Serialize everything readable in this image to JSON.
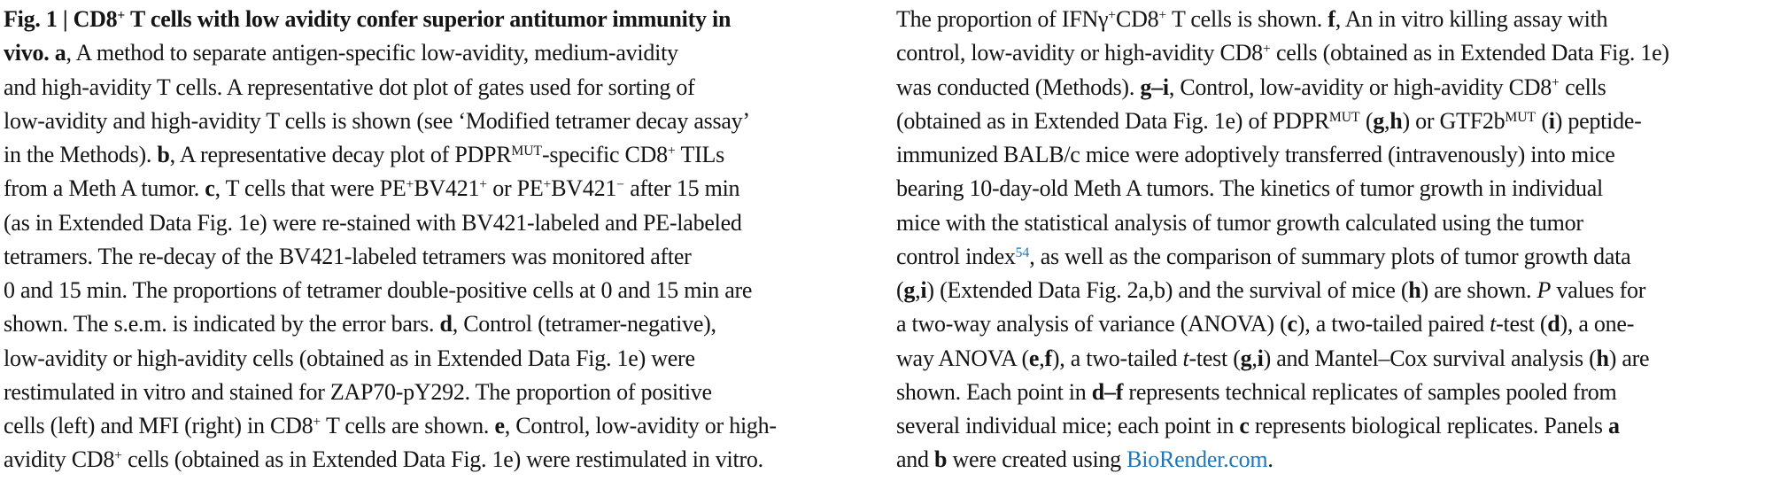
{
  "page": {
    "background": "#ffffff",
    "text_color": "#141414",
    "link_color": "#1b76bb"
  },
  "figure_caption": {
    "figure_label": "Fig. 1",
    "columns": [
      {
        "lines": [
          [
            {
              "t": "Fig. 1 | CD8",
              "b": 1
            },
            {
              "t": "+",
              "b": 1,
              "sup": 1
            },
            {
              "t": " T cells with low avidity confer superior antitumor immunity in",
              "b": 1
            }
          ],
          [
            {
              "t": "vivo. a",
              "b": 1
            },
            {
              "t": ", A method to separate antigen-specific low-avidity, medium-avidity"
            }
          ],
          [
            {
              "t": "and high-avidity T cells. A representative dot plot of gates used for sorting of"
            }
          ],
          [
            {
              "t": "low-avidity and high-avidity T cells is shown (see ‘Modified tetramer decay assay’"
            }
          ],
          [
            {
              "t": "in the Methods). "
            },
            {
              "t": "b",
              "b": 1
            },
            {
              "t": ", A representative decay plot of PDPR"
            },
            {
              "t": "MUT",
              "sup": 1
            },
            {
              "t": "-specific CD8"
            },
            {
              "t": "+",
              "sup": 1
            },
            {
              "t": " TILs"
            }
          ],
          [
            {
              "t": "from a Meth A tumor. "
            },
            {
              "t": "c",
              "b": 1
            },
            {
              "t": ", T cells that were PE"
            },
            {
              "t": "+",
              "sup": 1
            },
            {
              "t": "BV421"
            },
            {
              "t": "+",
              "sup": 1
            },
            {
              "t": " or PE"
            },
            {
              "t": "+",
              "sup": 1
            },
            {
              "t": "BV421"
            },
            {
              "t": "−",
              "sup": 1
            },
            {
              "t": " after 15 min"
            }
          ],
          [
            {
              "t": "(as in Extended Data Fig. 1e) were re-stained with BV421-labeled and PE-labeled"
            }
          ],
          [
            {
              "t": "tetramers. The re-decay of the BV421-labeled tetramers was monitored after"
            }
          ],
          [
            {
              "t": "0 and 15 min. The proportions of tetramer double-positive cells at 0 and 15 min are"
            }
          ],
          [
            {
              "t": "shown. The s.e.m. is indicated by the error bars. "
            },
            {
              "t": "d",
              "b": 1
            },
            {
              "t": ", Control (tetramer-negative),"
            }
          ],
          [
            {
              "t": "low-avidity or high-avidity cells (obtained as in Extended Data Fig. 1e) were"
            }
          ],
          [
            {
              "t": "restimulated in vitro and stained for ZAP70-pY292. The proportion of positive"
            }
          ],
          [
            {
              "t": "cells (left) and MFI (right) in CD8"
            },
            {
              "t": "+",
              "sup": 1
            },
            {
              "t": " T cells are shown. "
            },
            {
              "t": "e",
              "b": 1
            },
            {
              "t": ", Control, low-avidity or high-"
            }
          ],
          [
            {
              "t": "avidity CD8"
            },
            {
              "t": "+",
              "sup": 1
            },
            {
              "t": " cells (obtained as in Extended Data Fig. 1e) were restimulated in vitro."
            }
          ]
        ]
      },
      {
        "lines": [
          [
            {
              "t": "The proportion of IFNγ"
            },
            {
              "t": "+",
              "sup": 1
            },
            {
              "t": "CD8"
            },
            {
              "t": "+",
              "sup": 1
            },
            {
              "t": " T cells is shown. "
            },
            {
              "t": "f",
              "b": 1
            },
            {
              "t": ", An in vitro killing assay with"
            }
          ],
          [
            {
              "t": "control, low-avidity or high-avidity CD8"
            },
            {
              "t": "+",
              "sup": 1
            },
            {
              "t": " cells (obtained as in Extended Data Fig. 1e)"
            }
          ],
          [
            {
              "t": "was conducted (Methods). "
            },
            {
              "t": "g–i",
              "b": 1
            },
            {
              "t": ", Control, low-avidity or high-avidity CD8"
            },
            {
              "t": "+",
              "sup": 1
            },
            {
              "t": " cells"
            }
          ],
          [
            {
              "t": "(obtained as in Extended Data Fig. 1e) of PDPR"
            },
            {
              "t": "MUT",
              "sup": 1
            },
            {
              "t": " ("
            },
            {
              "t": "g",
              "b": 1
            },
            {
              "t": ","
            },
            {
              "t": "h",
              "b": 1
            },
            {
              "t": ") or GTF2b"
            },
            {
              "t": "MUT",
              "sup": 1
            },
            {
              "t": " ("
            },
            {
              "t": "i",
              "b": 1
            },
            {
              "t": ") peptide-"
            }
          ],
          [
            {
              "t": "immunized BALB/c mice were adoptively transferred (intravenously) into mice"
            }
          ],
          [
            {
              "t": "bearing 10-day-old Meth A tumors. The kinetics of tumor growth in individual"
            }
          ],
          [
            {
              "t": "mice with the statistical analysis of tumor growth calculated using the tumor"
            }
          ],
          [
            {
              "t": "control index"
            },
            {
              "t": "54",
              "sup": 1,
              "c": "link"
            },
            {
              "t": ", as well as the comparison of summary plots of tumor growth data"
            }
          ],
          [
            {
              "t": "("
            },
            {
              "t": "g",
              "b": 1
            },
            {
              "t": ","
            },
            {
              "t": "i",
              "b": 1
            },
            {
              "t": ") (Extended Data Fig. 2a,b) and the survival of mice ("
            },
            {
              "t": "h",
              "b": 1
            },
            {
              "t": ") are shown. "
            },
            {
              "t": "P",
              "i": 1
            },
            {
              "t": " values for"
            }
          ],
          [
            {
              "t": "a two-way analysis of variance (ANOVA) ("
            },
            {
              "t": "c",
              "b": 1
            },
            {
              "t": "), a two-tailed paired "
            },
            {
              "t": "t",
              "i": 1
            },
            {
              "t": "-test ("
            },
            {
              "t": "d",
              "b": 1
            },
            {
              "t": "), a one-"
            }
          ],
          [
            {
              "t": "way ANOVA ("
            },
            {
              "t": "e",
              "b": 1
            },
            {
              "t": ","
            },
            {
              "t": "f",
              "b": 1
            },
            {
              "t": "), a two-tailed "
            },
            {
              "t": "t",
              "i": 1
            },
            {
              "t": "-test ("
            },
            {
              "t": "g",
              "b": 1
            },
            {
              "t": ","
            },
            {
              "t": "i",
              "b": 1
            },
            {
              "t": ") and Mantel–Cox survival analysis ("
            },
            {
              "t": "h",
              "b": 1
            },
            {
              "t": ") are"
            }
          ],
          [
            {
              "t": "shown. Each point in "
            },
            {
              "t": "d–f",
              "b": 1
            },
            {
              "t": " represents technical replicates of samples pooled from"
            }
          ],
          [
            {
              "t": "several individual mice; each point in "
            },
            {
              "t": "c",
              "b": 1
            },
            {
              "t": " represents biological replicates. Panels "
            },
            {
              "t": "a",
              "b": 1
            }
          ],
          [
            {
              "t": "and "
            },
            {
              "t": "b",
              "b": 1
            },
            {
              "t": " were created using "
            },
            {
              "t": "BioRender.com",
              "c": "link",
              "a": 1
            },
            {
              "t": "."
            }
          ]
        ]
      }
    ]
  }
}
